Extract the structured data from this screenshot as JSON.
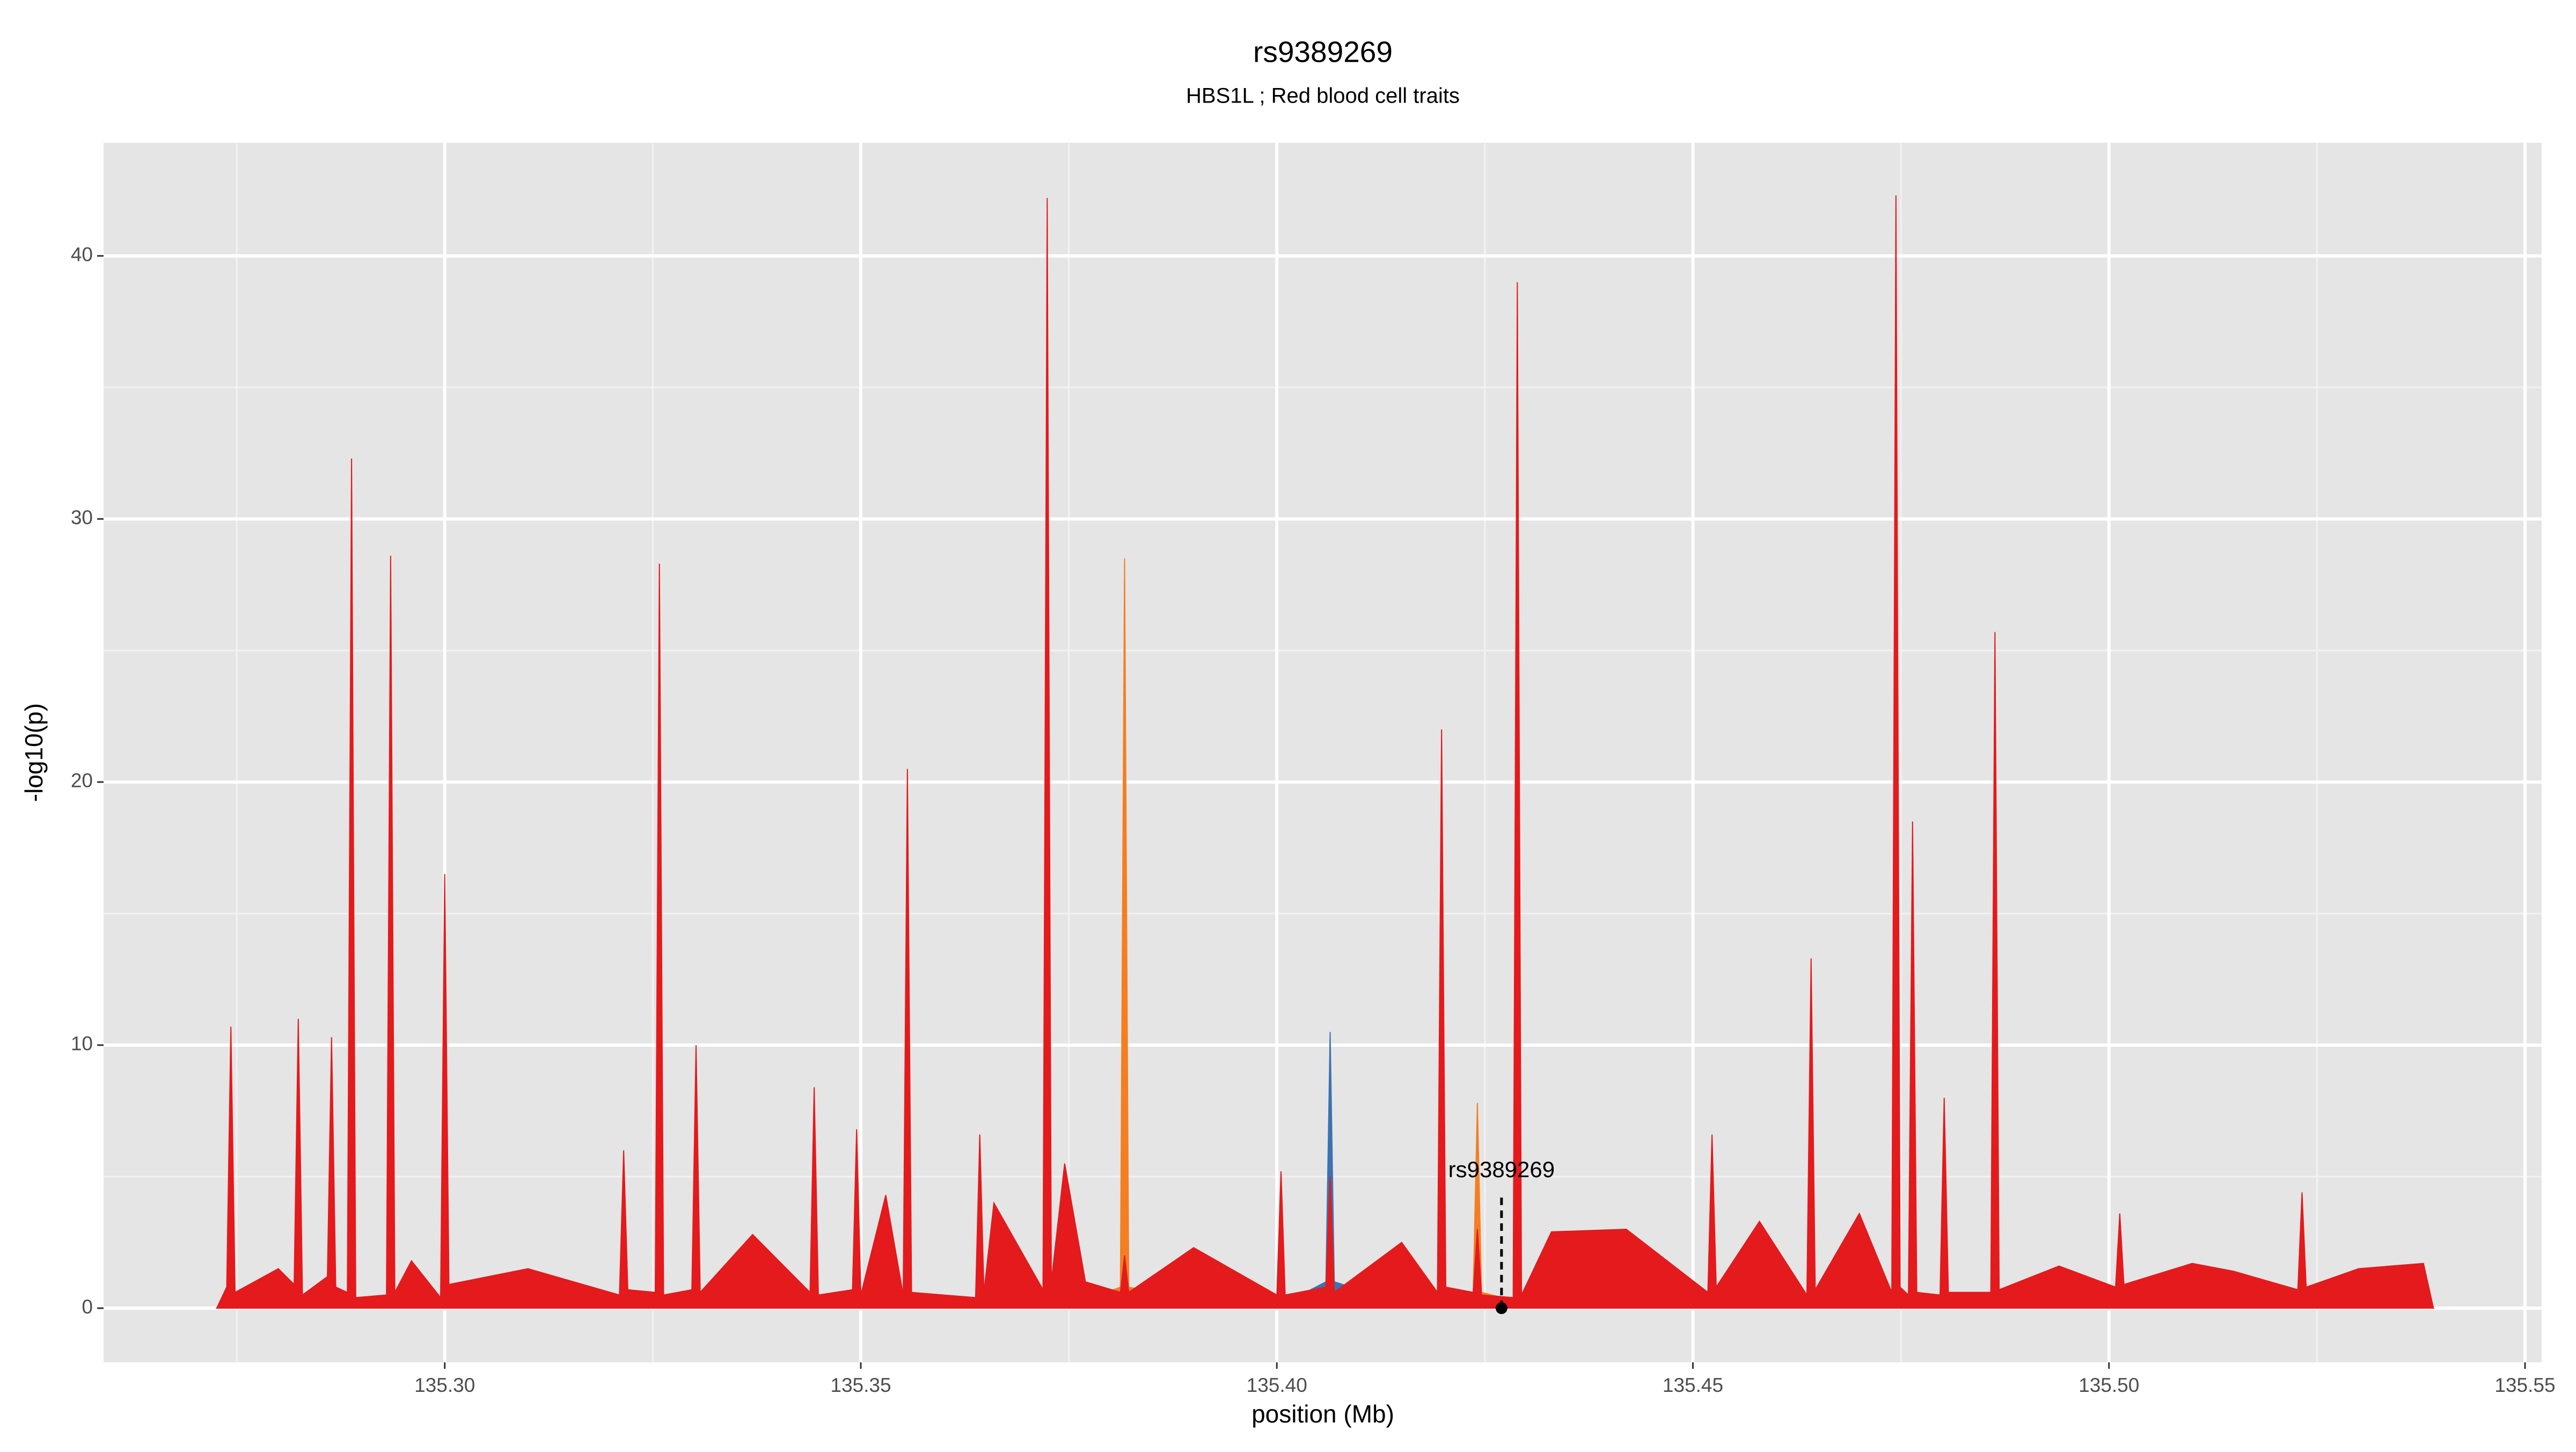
{
  "chart_data": {
    "type": "area",
    "title": "rs9389269",
    "subtitle": "HBS1L ; Red blood cell traits",
    "xlabel": "position (Mb)",
    "ylabel": "-log10(p)",
    "xlim": [
      135.259,
      135.552
    ],
    "ylim": [
      -2.06,
      44.3
    ],
    "xticks": [
      {
        "value": 135.3,
        "label": "135.30"
      },
      {
        "value": 135.35,
        "label": "135.35"
      },
      {
        "value": 135.4,
        "label": "135.40"
      },
      {
        "value": 135.45,
        "label": "135.45"
      },
      {
        "value": 135.5,
        "label": "135.50"
      },
      {
        "value": 135.55,
        "label": "135.55"
      }
    ],
    "yticks": [
      0,
      10,
      20,
      30,
      40
    ],
    "grid": true,
    "x": [
      135.2726,
      135.2738,
      135.2743,
      135.2748,
      135.28,
      135.2819,
      135.2824,
      135.2829,
      135.2859,
      135.2864,
      135.2869,
      135.2883,
      135.2888,
      135.2893,
      135.293,
      135.2935,
      135.294,
      135.296,
      135.2995,
      135.3,
      135.3005,
      135.31,
      135.321,
      135.3215,
      135.322,
      135.3253,
      135.3258,
      135.3263,
      135.3297,
      135.3302,
      135.3307,
      135.337,
      135.3439,
      135.3444,
      135.3449,
      135.349,
      135.3495,
      135.35,
      135.353,
      135.3551,
      135.3556,
      135.3561,
      135.3638,
      135.3643,
      135.3648,
      135.366,
      135.3719,
      135.3724,
      135.3729,
      135.3745,
      135.377,
      135.3812,
      135.3817,
      135.3822,
      135.39,
      135.4,
      135.4005,
      135.401,
      135.4059,
      135.4064,
      135.4069,
      135.415,
      135.4193,
      135.4198,
      135.4203,
      135.4236,
      135.4241,
      135.4246,
      135.4284,
      135.4289,
      135.4294,
      135.433,
      135.442,
      135.4518,
      135.4523,
      135.4528,
      135.458,
      135.4637,
      135.4642,
      135.4647,
      135.47,
      135.4739,
      135.4744,
      135.4749,
      135.4759,
      135.4764,
      135.4769,
      135.4797,
      135.4802,
      135.4807,
      135.4858,
      135.4863,
      135.4868,
      135.494,
      135.5008,
      135.5013,
      135.5018,
      135.51,
      135.515,
      135.5227,
      135.5232,
      135.5237,
      135.53,
      135.5378,
      135.539
    ],
    "series": [
      {
        "color": "#3d72b0",
        "values": [
          0,
          0.8,
          3,
          0.5,
          0.2,
          0.2,
          0.2,
          0.2,
          0.2,
          0.2,
          0.2,
          0.2,
          0.2,
          0.2,
          0.2,
          0.2,
          0.2,
          0.2,
          0.2,
          0.2,
          0.2,
          0.2,
          0.2,
          0.2,
          0.2,
          0.2,
          0.2,
          0.2,
          0.2,
          0.2,
          0.2,
          0.2,
          0.2,
          0.2,
          0.2,
          0.6,
          6,
          0.5,
          0.2,
          0.2,
          0.2,
          0.2,
          0.2,
          0.2,
          0.2,
          0.2,
          0.2,
          0.2,
          0.2,
          0.2,
          0.2,
          0.2,
          0.2,
          0.2,
          0.2,
          0.2,
          0.2,
          0.2,
          1,
          10.5,
          1,
          0.2,
          0.2,
          0.2,
          0.2,
          0.2,
          0.2,
          0.2,
          0.2,
          0.2,
          0.2,
          0.2,
          0.2,
          0.2,
          0.2,
          0.2,
          0.2,
          0.2,
          0.2,
          0.2,
          0.2,
          0.2,
          0.2,
          0.2,
          0.2,
          0.2,
          0.2,
          0.2,
          0.2,
          0.2,
          0.2,
          0.2,
          0.2,
          0.2,
          0.2,
          0.2,
          0.2,
          0.2,
          0.2,
          0.2,
          0.2,
          0.2,
          0.2,
          0.2,
          0
        ]
      },
      {
        "color": "#f57e20",
        "values": [
          0,
          0.3,
          0.3,
          0.3,
          0.3,
          0.3,
          0.3,
          0.3,
          0.3,
          0.3,
          0.3,
          0.3,
          0.3,
          0.3,
          0.3,
          0.3,
          0.3,
          0.3,
          0.3,
          0.3,
          0.3,
          0.3,
          0.3,
          0.3,
          0.3,
          0.3,
          0.3,
          0.3,
          0.3,
          0.3,
          0.3,
          0.3,
          0.3,
          0.3,
          0.3,
          0.3,
          0.3,
          0.3,
          0.3,
          0.3,
          0.3,
          0.3,
          0.3,
          0.3,
          0.3,
          0.3,
          0.3,
          0.3,
          0.3,
          0.3,
          0.3,
          0.8,
          28.5,
          0.8,
          0.3,
          0.3,
          0.3,
          0.3,
          0.3,
          0.3,
          0.3,
          0.3,
          0.3,
          0.3,
          0.3,
          0.6,
          7.8,
          0.6,
          0.3,
          0.3,
          0.3,
          0.3,
          0.3,
          0.3,
          0.3,
          0.3,
          0.3,
          0.3,
          0.3,
          0.3,
          0.3,
          0.3,
          0.3,
          0.3,
          0.3,
          0.3,
          0.3,
          0.3,
          0.3,
          0.3,
          0.3,
          0.3,
          0.3,
          0.3,
          0.3,
          0.3,
          0.3,
          0.3,
          0.3,
          0.3,
          0.3,
          0.3,
          0.3,
          0.3,
          0
        ]
      },
      {
        "color": "#e41a1c",
        "values": [
          0,
          0.8,
          10.7,
          0.6,
          1.5,
          0.9,
          11,
          0.5,
          1.2,
          10.3,
          0.8,
          0.6,
          32.3,
          0.4,
          0.5,
          28.6,
          0.6,
          1.8,
          0.4,
          16.5,
          0.9,
          1.5,
          0.5,
          6,
          0.7,
          0.6,
          28.3,
          0.5,
          0.7,
          10,
          0.6,
          2.8,
          0.6,
          8.4,
          0.5,
          0.7,
          6.8,
          0.5,
          4.3,
          0.5,
          20.5,
          0.6,
          0.4,
          6.6,
          0.6,
          4,
          0.7,
          42.2,
          1,
          5.5,
          1,
          0.6,
          2,
          0.6,
          2.3,
          0.5,
          5.2,
          0.5,
          0.8,
          5,
          0.6,
          2.5,
          0.6,
          22,
          0.8,
          0.6,
          3,
          0.5,
          0.4,
          39,
          0.5,
          2.9,
          3,
          0.6,
          6.6,
          0.8,
          3.3,
          0.5,
          13.3,
          0.7,
          3.6,
          0.6,
          42.3,
          0.8,
          0.5,
          18.5,
          0.6,
          0.5,
          8,
          0.6,
          0.6,
          25.7,
          0.7,
          1.6,
          0.8,
          3.6,
          0.9,
          1.7,
          1.4,
          0.7,
          4.4,
          0.8,
          1.5,
          1.7,
          0
        ]
      }
    ],
    "annotations": [
      {
        "text": "rs9389269",
        "x": 135.427,
        "y": 0
      }
    ]
  }
}
